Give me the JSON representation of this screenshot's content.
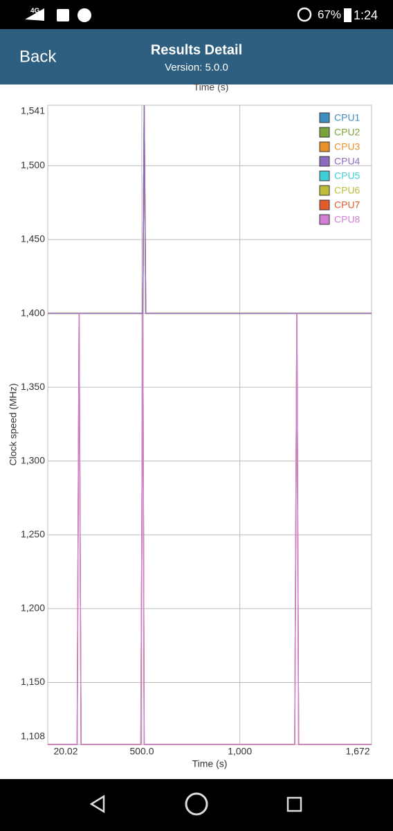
{
  "status_bar": {
    "network": "4G",
    "battery": "67%",
    "time": "1:24"
  },
  "header": {
    "back": "Back",
    "title": "Results Detail",
    "subtitle": "Version: 5.0.0"
  },
  "top_label": "Time (s)",
  "chart_data": {
    "type": "line",
    "x_label": "Time (s)",
    "y_label": "Clock speed (MHz)",
    "x": [
      20.02,
      170,
      180,
      190,
      495,
      505,
      512,
      520,
      1280,
      1291,
      1300,
      1672
    ],
    "xlim": [
      20.02,
      1672
    ],
    "xticks": [
      20.02,
      {
        "value": 500,
        "label": "500.0"
      },
      {
        "value": 1000,
        "label": "1,000"
      },
      {
        "value": 1672,
        "label": "1,672"
      }
    ],
    "ylim": [
      1108,
      1541
    ],
    "yticks": [
      {
        "value": 1108,
        "label": "1,108"
      },
      {
        "value": 1150,
        "label": "1,150"
      },
      {
        "value": 1200,
        "label": "1,200"
      },
      {
        "value": 1250,
        "label": "1,250"
      },
      {
        "value": 1300,
        "label": "1,300"
      },
      {
        "value": 1350,
        "label": "1,350"
      },
      {
        "value": 1400,
        "label": "1,400"
      },
      {
        "value": 1450,
        "label": "1,450"
      },
      {
        "value": 1500,
        "label": "1,500"
      },
      {
        "value": 1541,
        "label": "1,541"
      }
    ],
    "grid": true,
    "legend": "top-right",
    "series": [
      {
        "name": "CPU1",
        "color": "#3d8fc0",
        "values": [
          1400,
          1400,
          1400,
          1400,
          1400,
          1400,
          1541,
          1400,
          1400,
          1400,
          1400,
          1400
        ]
      },
      {
        "name": "CPU2",
        "color": "#7ba33c",
        "values": [
          1400,
          1400,
          1400,
          1400,
          1400,
          1400,
          1541,
          1400,
          1400,
          1400,
          1400,
          1400
        ]
      },
      {
        "name": "CPU3",
        "color": "#e8902a",
        "values": [
          1400,
          1400,
          1400,
          1400,
          1400,
          1400,
          1541,
          1400,
          1400,
          1400,
          1400,
          1400
        ]
      },
      {
        "name": "CPU4",
        "color": "#8e6bbf",
        "values": [
          1400,
          1400,
          1400,
          1400,
          1400,
          1400,
          1541,
          1400,
          1400,
          1400,
          1400,
          1400
        ]
      },
      {
        "name": "CPU5",
        "color": "#3fcfd6",
        "values": [
          1108,
          1108,
          1400,
          1108,
          1108,
          1400,
          1108,
          1108,
          1108,
          1400,
          1108,
          1108
        ]
      },
      {
        "name": "CPU6",
        "color": "#bdbd3a",
        "values": [
          1108,
          1108,
          1400,
          1108,
          1108,
          1400,
          1108,
          1108,
          1108,
          1400,
          1108,
          1108
        ]
      },
      {
        "name": "CPU7",
        "color": "#e55a2b",
        "values": [
          1108,
          1108,
          1400,
          1108,
          1108,
          1400,
          1108,
          1108,
          1108,
          1400,
          1108,
          1108
        ]
      },
      {
        "name": "CPU8",
        "color": "#d07fd4",
        "values": [
          1108,
          1108,
          1400,
          1108,
          1108,
          1400,
          1108,
          1108,
          1108,
          1400,
          1108,
          1108
        ]
      }
    ]
  }
}
